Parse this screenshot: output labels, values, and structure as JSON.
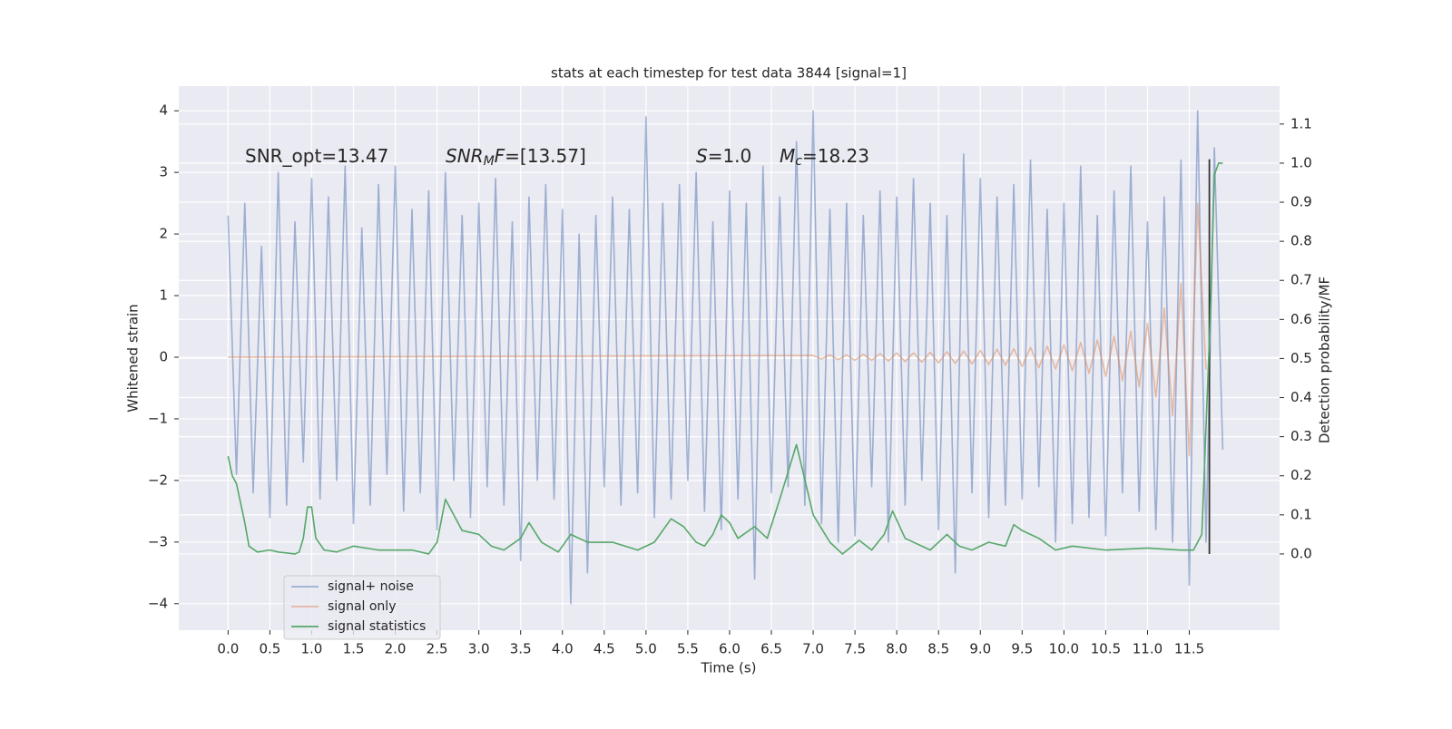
{
  "chart_data": {
    "type": "line",
    "title": "stats at each timestep for test data 3844 [signal=1]",
    "xlabel": "Time (s)",
    "ylabel": "Whitened strain",
    "y2label": "Detection probability/MF",
    "xlim": [
      -0.59,
      12.58
    ],
    "ylim": [
      -4.43,
      4.4
    ],
    "y2lim": [
      -0.195,
      1.197
    ],
    "xticks": [
      {
        "value": 0,
        "label": "0.0"
      },
      0.5,
      {
        "value": 1,
        "label": "1.0"
      },
      1.5,
      {
        "value": 2,
        "label": "2.0"
      },
      2.5,
      {
        "value": 3,
        "label": "3.0"
      },
      3.5,
      {
        "value": 4,
        "label": "4.0"
      },
      4.5,
      {
        "value": 5,
        "label": "5.0"
      },
      5.5,
      {
        "value": 6,
        "label": "6.0"
      },
      6.5,
      {
        "value": 7,
        "label": "7.0"
      },
      7.5,
      {
        "value": 8,
        "label": "8.0"
      },
      8.5,
      {
        "value": 9,
        "label": "9.0"
      },
      9.5,
      {
        "value": 10,
        "label": "10.0"
      },
      10.5,
      {
        "value": 11,
        "label": "11.0"
      },
      11.5
    ],
    "yticks": [
      {
        "value": -4,
        "label": "−4"
      },
      {
        "value": -3,
        "label": "−3"
      },
      {
        "value": -2,
        "label": "−2"
      },
      {
        "value": -1,
        "label": "−1"
      },
      0,
      1,
      2,
      3,
      4
    ],
    "y2ticks": [
      {
        "value": 0,
        "label": "0.0"
      },
      0.1,
      0.2,
      0.3,
      0.4,
      0.5,
      0.6,
      0.7,
      0.8,
      0.9,
      {
        "value": 1,
        "label": "1.0"
      },
      1.1
    ],
    "grid": true,
    "legend": "lower left",
    "annotations": [
      [
        {
          "text": "SNR_opt=13.47",
          "style": "normal"
        }
      ],
      [
        {
          "text": "SNR",
          "style": "italic"
        },
        {
          "text": "M",
          "style": "italic-sub"
        },
        {
          "text": "F",
          "style": "italic"
        },
        {
          "text": "=[13.57]",
          "style": "normal"
        }
      ],
      [
        {
          "text": "S",
          "style": "italic"
        },
        {
          "text": "=1.0",
          "style": "normal"
        }
      ],
      [
        {
          "text": "M",
          "style": "italic"
        },
        {
          "text": "c",
          "style": "italic-sub"
        },
        {
          "text": "=18.23",
          "style": "normal"
        }
      ]
    ],
    "vline": {
      "x": 11.74,
      "y2": [
        0,
        1.01
      ],
      "color": "#333333"
    },
    "series": [
      {
        "name": "signal+ noise",
        "color": "#4c72b0",
        "opacity": 0.5,
        "x": [
          0,
          0.1,
          0.2,
          0.3,
          0.4,
          0.5,
          0.6,
          0.7,
          0.8,
          0.9,
          1,
          1.1,
          1.2,
          1.3,
          1.4,
          1.5,
          1.6,
          1.7,
          1.8,
          1.9,
          2,
          2.1,
          2.2,
          2.3,
          2.4,
          2.5,
          2.6,
          2.7,
          2.8,
          2.9,
          3,
          3.1,
          3.2,
          3.3,
          3.4,
          3.5,
          3.6,
          3.7,
          3.8,
          3.9,
          4,
          4.1,
          4.2,
          4.3,
          4.4,
          4.5,
          4.6,
          4.7,
          4.8,
          4.9,
          5,
          5.1,
          5.2,
          5.3,
          5.4,
          5.5,
          5.6,
          5.7,
          5.8,
          5.9,
          6,
          6.1,
          6.2,
          6.3,
          6.4,
          6.5,
          6.6,
          6.7,
          6.8,
          6.9,
          7,
          7.1,
          7.2,
          7.3,
          7.4,
          7.5,
          7.6,
          7.7,
          7.8,
          7.9,
          8,
          8.1,
          8.2,
          8.3,
          8.4,
          8.5,
          8.6,
          8.7,
          8.8,
          8.9,
          9,
          9.1,
          9.2,
          9.3,
          9.4,
          9.5,
          9.6,
          9.7,
          9.8,
          9.9,
          10,
          10.1,
          10.2,
          10.3,
          10.4,
          10.5,
          10.6,
          10.7,
          10.8,
          10.9,
          11,
          11.1,
          11.2,
          11.3,
          11.4,
          11.5,
          11.6,
          11.7,
          11.8,
          11.9
        ],
        "values": [
          2.3,
          -1.9,
          2.5,
          -2.2,
          1.8,
          -2.6,
          3.0,
          -2.4,
          2.2,
          -1.7,
          2.9,
          -2.3,
          2.6,
          -2.0,
          3.1,
          -2.7,
          2.1,
          -2.4,
          2.8,
          -1.9,
          3.1,
          -2.5,
          2.4,
          -2.2,
          2.7,
          -2.8,
          3.0,
          -2.0,
          2.3,
          -2.6,
          2.5,
          -2.1,
          2.9,
          -2.4,
          2.2,
          -3.3,
          2.6,
          -2.0,
          2.8,
          -2.3,
          2.4,
          -4.0,
          2.0,
          -3.5,
          2.3,
          -2.1,
          2.6,
          -2.4,
          2.4,
          -2.2,
          3.9,
          -2.6,
          2.5,
          -2.3,
          2.8,
          -2.0,
          3.0,
          -2.5,
          2.2,
          -2.8,
          2.7,
          -2.3,
          2.5,
          -3.6,
          3.1,
          -2.2,
          2.6,
          -2.1,
          3.5,
          -2.4,
          4.0,
          -2.7,
          2.4,
          -3.0,
          2.5,
          -2.9,
          2.3,
          -2.1,
          2.7,
          -3.0,
          2.6,
          -2.4,
          2.9,
          -2.0,
          2.5,
          -2.8,
          2.3,
          -3.5,
          3.3,
          -2.2,
          2.9,
          -2.6,
          2.6,
          -2.4,
          2.8,
          -2.3,
          3.2,
          -2.1,
          2.4,
          -3.0,
          2.5,
          -2.7,
          3.1,
          -2.6,
          2.3,
          -2.9,
          2.7,
          -2.2,
          3.1,
          -2.5,
          2.2,
          -2.8,
          2.6,
          -3.0,
          3.2,
          -3.7,
          4.0,
          -3.0,
          3.4,
          -1.5
        ]
      },
      {
        "name": "signal only",
        "color": "#dd8452",
        "opacity": 0.5,
        "x": [
          0,
          7,
          7.1,
          7.2,
          7.3,
          7.4,
          7.5,
          7.6,
          7.7,
          7.8,
          7.9,
          8,
          8.1,
          8.2,
          8.3,
          8.4,
          8.5,
          8.6,
          8.7,
          8.8,
          8.9,
          9,
          9.1,
          9.2,
          9.3,
          9.4,
          9.5,
          9.6,
          9.7,
          9.8,
          9.9,
          10,
          10.1,
          10.2,
          10.3,
          10.4,
          10.5,
          10.6,
          10.7,
          10.8,
          10.9,
          11,
          11.1,
          11.2,
          11.3,
          11.4,
          11.5,
          11.6,
          11.7
        ],
        "values": [
          0,
          0.03,
          -0.03,
          0.04,
          -0.04,
          0.04,
          -0.05,
          0.05,
          -0.05,
          0.06,
          -0.06,
          0.07,
          -0.07,
          0.07,
          -0.08,
          0.08,
          -0.09,
          0.09,
          -0.1,
          0.1,
          -0.11,
          0.11,
          -0.12,
          0.13,
          -0.13,
          0.14,
          -0.15,
          0.16,
          -0.17,
          0.18,
          -0.19,
          0.2,
          -0.22,
          0.24,
          -0.26,
          0.28,
          -0.31,
          0.34,
          -0.38,
          0.42,
          -0.48,
          0.55,
          -0.65,
          0.8,
          -0.95,
          1.2,
          -1.6,
          2.5,
          -0.2
        ]
      },
      {
        "name": "signal statistics",
        "color": "#55a868",
        "opacity": 1,
        "axis": "y2",
        "x": [
          0,
          0.05,
          0.1,
          0.2,
          0.25,
          0.35,
          0.5,
          0.6,
          0.8,
          0.85,
          0.9,
          0.95,
          1,
          1.05,
          1.15,
          1.3,
          1.5,
          1.8,
          2.2,
          2.4,
          2.5,
          2.6,
          2.7,
          2.8,
          3,
          3.15,
          3.3,
          3.5,
          3.6,
          3.75,
          3.95,
          4.1,
          4.3,
          4.6,
          4.9,
          5.1,
          5.3,
          5.45,
          5.6,
          5.7,
          5.8,
          5.9,
          6,
          6.1,
          6.3,
          6.45,
          6.6,
          6.8,
          7,
          7.2,
          7.35,
          7.55,
          7.7,
          7.85,
          7.95,
          8.1,
          8.4,
          8.6,
          8.75,
          8.9,
          9.1,
          9.3,
          9.4,
          9.5,
          9.7,
          9.9,
          10.1,
          10.5,
          11,
          11.4,
          11.55,
          11.65,
          11.75,
          11.8,
          11.85,
          11.9
        ],
        "values": [
          0.25,
          0.2,
          0.18,
          0.08,
          0.02,
          0.005,
          0.01,
          0.005,
          0,
          0.005,
          0.04,
          0.12,
          0.12,
          0.04,
          0.01,
          0.005,
          0.02,
          0.01,
          0.01,
          0,
          0.03,
          0.14,
          0.1,
          0.06,
          0.05,
          0.02,
          0.01,
          0.04,
          0.08,
          0.03,
          0.005,
          0.05,
          0.03,
          0.03,
          0.01,
          0.03,
          0.09,
          0.07,
          0.03,
          0.02,
          0.05,
          0.1,
          0.08,
          0.04,
          0.07,
          0.04,
          0.14,
          0.28,
          0.1,
          0.03,
          0,
          0.035,
          0.01,
          0.05,
          0.11,
          0.04,
          0.01,
          0.05,
          0.02,
          0.01,
          0.03,
          0.02,
          0.075,
          0.06,
          0.04,
          0.01,
          0.02,
          0.01,
          0.015,
          0.01,
          0.01,
          0.05,
          0.6,
          0.97,
          1,
          1
        ]
      }
    ]
  }
}
